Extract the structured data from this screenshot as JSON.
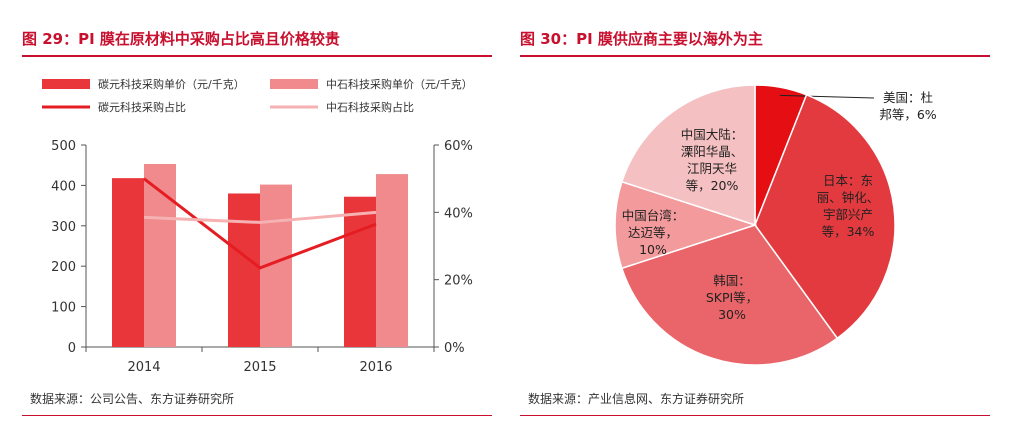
{
  "left": {
    "title": "图 29：PI 膜在原材料中采购占比高且价格较贵",
    "source": "数据来源：公司公告、东方证券研究所"
  },
  "right": {
    "title": "图 30：PI 膜供应商主要以海外为主",
    "source": "数据来源：产业信息网、东方证券研究所"
  },
  "colors": {
    "tan_bar": "#e8363a",
    "zs_bar": "#f08a8c",
    "tan_line": "#e51d23",
    "zs_line": "#f6b2b3",
    "accent": "#c8102e"
  },
  "chart_data": [
    {
      "type": "bar",
      "categories": [
        "2014",
        "2015",
        "2016"
      ],
      "series": [
        {
          "name": "碳元科技采购单价（元/千克）",
          "kind": "bar",
          "axis": "left",
          "values": [
            418,
            380,
            372
          ]
        },
        {
          "name": "中石科技采购单价（元/千克）",
          "kind": "bar",
          "axis": "left",
          "values": [
            453,
            402,
            428
          ]
        },
        {
          "name": "碳元科技采购占比",
          "kind": "line",
          "axis": "right",
          "values": [
            50,
            23.5,
            36.5
          ]
        },
        {
          "name": "中石科技采购占比",
          "kind": "line",
          "axis": "right",
          "values": [
            38.5,
            37,
            40
          ]
        }
      ],
      "ylim": [
        0,
        500
      ],
      "yticks": [
        "0",
        "100",
        "200",
        "300",
        "400",
        "500"
      ],
      "y2lim": [
        0,
        60
      ],
      "y2ticks": [
        "0%",
        "20%",
        "40%",
        "60%"
      ],
      "legend_position": "top"
    },
    {
      "type": "pie",
      "slices": [
        {
          "label": [
            "美国：杜",
            "邦等，6%"
          ],
          "value": 6,
          "color": "#e50e12"
        },
        {
          "label": [
            "日本：东",
            "丽、钟化、",
            "宇部兴产",
            "等，34%"
          ],
          "value": 34,
          "color": "#e33a3f"
        },
        {
          "label": [
            "韩国：",
            "SKPI等，",
            "30%"
          ],
          "value": 30,
          "color": "#ea6569"
        },
        {
          "label": [
            "中国台湾：",
            "达迈等，",
            "10%"
          ],
          "value": 10,
          "color": "#f29a9c"
        },
        {
          "label": [
            "中国大陆：",
            "溧阳华晶、",
            "江阴天华",
            "等，20%"
          ],
          "value": 20,
          "color": "#f5c0c1"
        }
      ]
    }
  ]
}
